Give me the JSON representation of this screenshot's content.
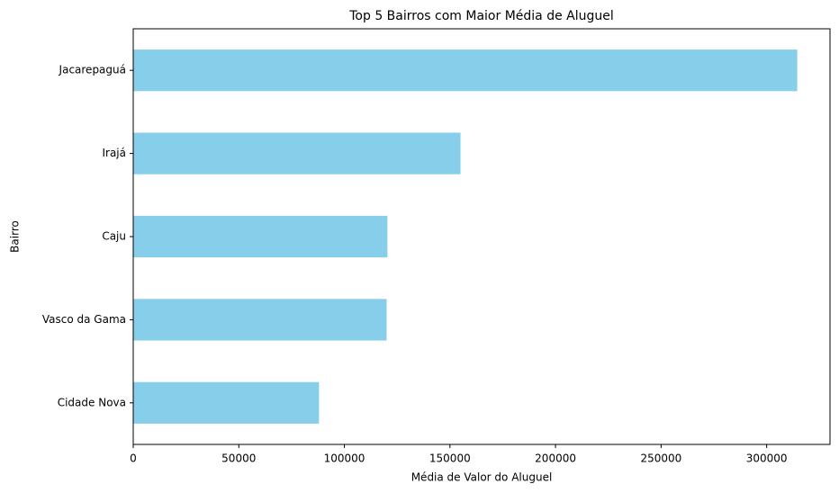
{
  "chart_data": {
    "type": "barh",
    "title": "Top 5 Bairros com Maior Média de Aluguel",
    "x_label": "Média de Valor do Aluguel",
    "y_label": "Bairro",
    "categories": [
      "Jacarepaguá",
      "Irajá",
      "Caju",
      "Vasco da Gama",
      "Cidade Nova"
    ],
    "values": [
      314500,
      155000,
      120400,
      120000,
      88000
    ],
    "color": "#87ceeb",
    "xlim": [
      0,
      330000
    ],
    "xticks": [
      0,
      50000,
      100000,
      150000,
      200000,
      250000,
      300000
    ],
    "grid": false
  }
}
